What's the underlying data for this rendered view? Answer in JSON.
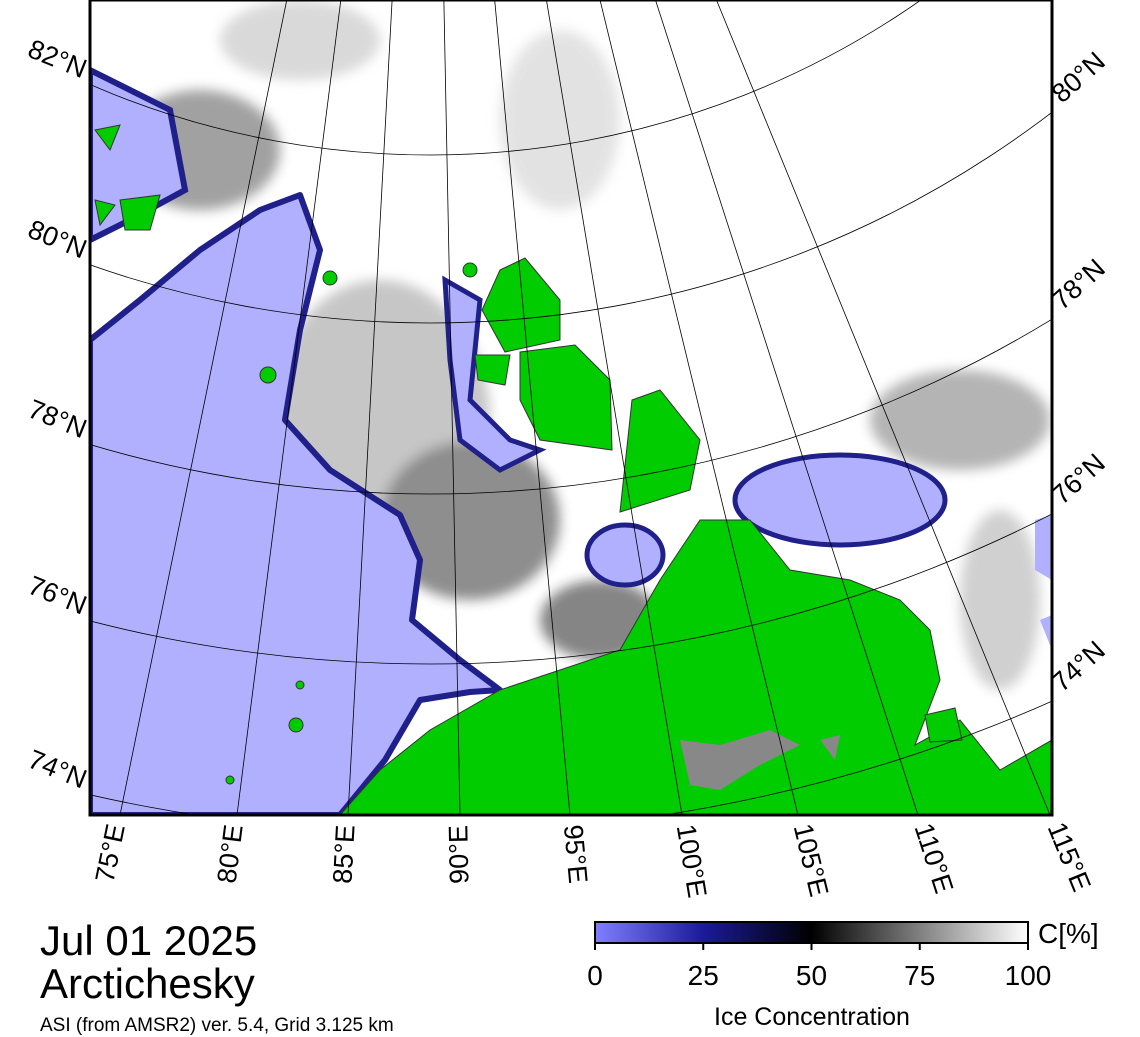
{
  "map": {
    "lat_labels_left": [
      "82°N",
      "80°N",
      "78°N",
      "76°N",
      "74°N"
    ],
    "lat_labels_right": [
      "80°N",
      "78°N",
      "76°N",
      "74°N"
    ],
    "lon_labels": [
      "75°E",
      "80°E",
      "85°E",
      "90°E",
      "95°E",
      "100°E",
      "105°E",
      "110°E",
      "115°E"
    ]
  },
  "info": {
    "date": "Jul 01 2025",
    "region": "Arctichesky",
    "source": "ASI (from AMSR2) ver. 5.4,  Grid 3.125 km"
  },
  "colorbar": {
    "label": "Ice Concentration",
    "unit": "C[%]",
    "lim": [
      0,
      100
    ],
    "ticks": [
      0,
      25,
      50,
      75,
      100
    ]
  }
}
